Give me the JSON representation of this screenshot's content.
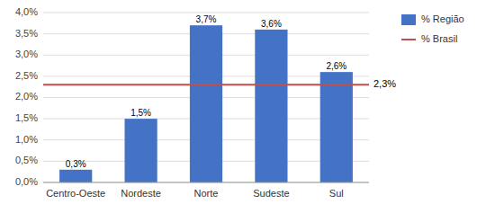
{
  "chart_data": {
    "type": "bar",
    "categories": [
      "Centro-Oeste",
      "Nordeste",
      "Norte",
      "Sudeste",
      "Sul"
    ],
    "series": [
      {
        "name": "% Região",
        "color": "#4472C4",
        "values": [
          0.3,
          1.5,
          3.7,
          3.6,
          2.6
        ],
        "value_labels": [
          "0,3%",
          "1,5%",
          "3,7%",
          "3,6%",
          "2,6%"
        ]
      }
    ],
    "reference_line": {
      "name": "% Brasil",
      "color": "#C0504D",
      "value": 2.3,
      "label": "2,3%"
    },
    "ylim": [
      0,
      4.0
    ],
    "yticks": [
      {
        "value": 0.0,
        "label": "0,0%"
      },
      {
        "value": 0.5,
        "label": "0,5%"
      },
      {
        "value": 1.0,
        "label": "1,0%"
      },
      {
        "value": 1.5,
        "label": "1,5%"
      },
      {
        "value": 2.0,
        "label": "2,0%"
      },
      {
        "value": 2.5,
        "label": "2,5%"
      },
      {
        "value": 3.0,
        "label": "3,0%"
      },
      {
        "value": 3.5,
        "label": "3,5%"
      },
      {
        "value": 4.0,
        "label": "4,0%"
      }
    ],
    "grid": true,
    "data_labels": true,
    "legend": "right"
  }
}
